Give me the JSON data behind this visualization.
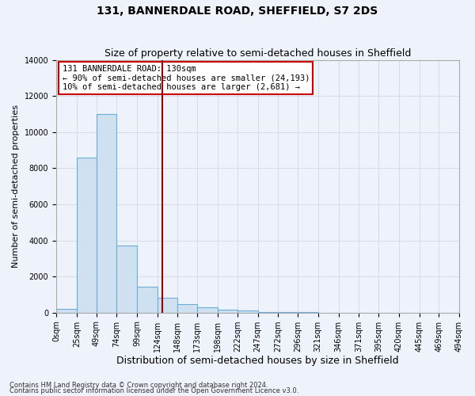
{
  "title": "131, BANNERDALE ROAD, SHEFFIELD, S7 2DS",
  "subtitle": "Size of property relative to semi-detached houses in Sheffield",
  "xlabel": "Distribution of semi-detached houses by size in Sheffield",
  "ylabel": "Number of semi-detached properties",
  "footnote1": "Contains HM Land Registry data © Crown copyright and database right 2024.",
  "footnote2": "Contains public sector information licensed under the Open Government Licence v3.0.",
  "annotation_line1": "131 BANNERDALE ROAD: 130sqm",
  "annotation_line2": "← 90% of semi-detached houses are smaller (24,193)",
  "annotation_line3": "10% of semi-detached houses are larger (2,681) →",
  "property_size": 130,
  "bin_edges": [
    0,
    25,
    49,
    74,
    99,
    124,
    148,
    173,
    198,
    222,
    247,
    272,
    296,
    321,
    346,
    371,
    395,
    420,
    445,
    469,
    494
  ],
  "bin_counts": [
    200,
    8600,
    11000,
    3700,
    1450,
    800,
    450,
    280,
    180,
    100,
    50,
    25,
    15,
    8,
    5,
    3,
    2,
    1,
    0,
    0
  ],
  "bar_facecolor": "#cfe0f0",
  "bar_edgecolor": "#6aaed6",
  "vline_color": "#990000",
  "annotation_box_edgecolor": "#cc0000",
  "annotation_box_facecolor": "#ffffff",
  "ylim": [
    0,
    14000
  ],
  "yticks": [
    0,
    2000,
    4000,
    6000,
    8000,
    10000,
    12000,
    14000
  ],
  "grid_color": "#d0d8e8",
  "background_color": "#eef2fa",
  "title_fontsize": 10,
  "subtitle_fontsize": 9,
  "xlabel_fontsize": 9,
  "ylabel_fontsize": 8,
  "tick_fontsize": 7,
  "annotation_fontsize": 7.5,
  "footnote_fontsize": 6
}
